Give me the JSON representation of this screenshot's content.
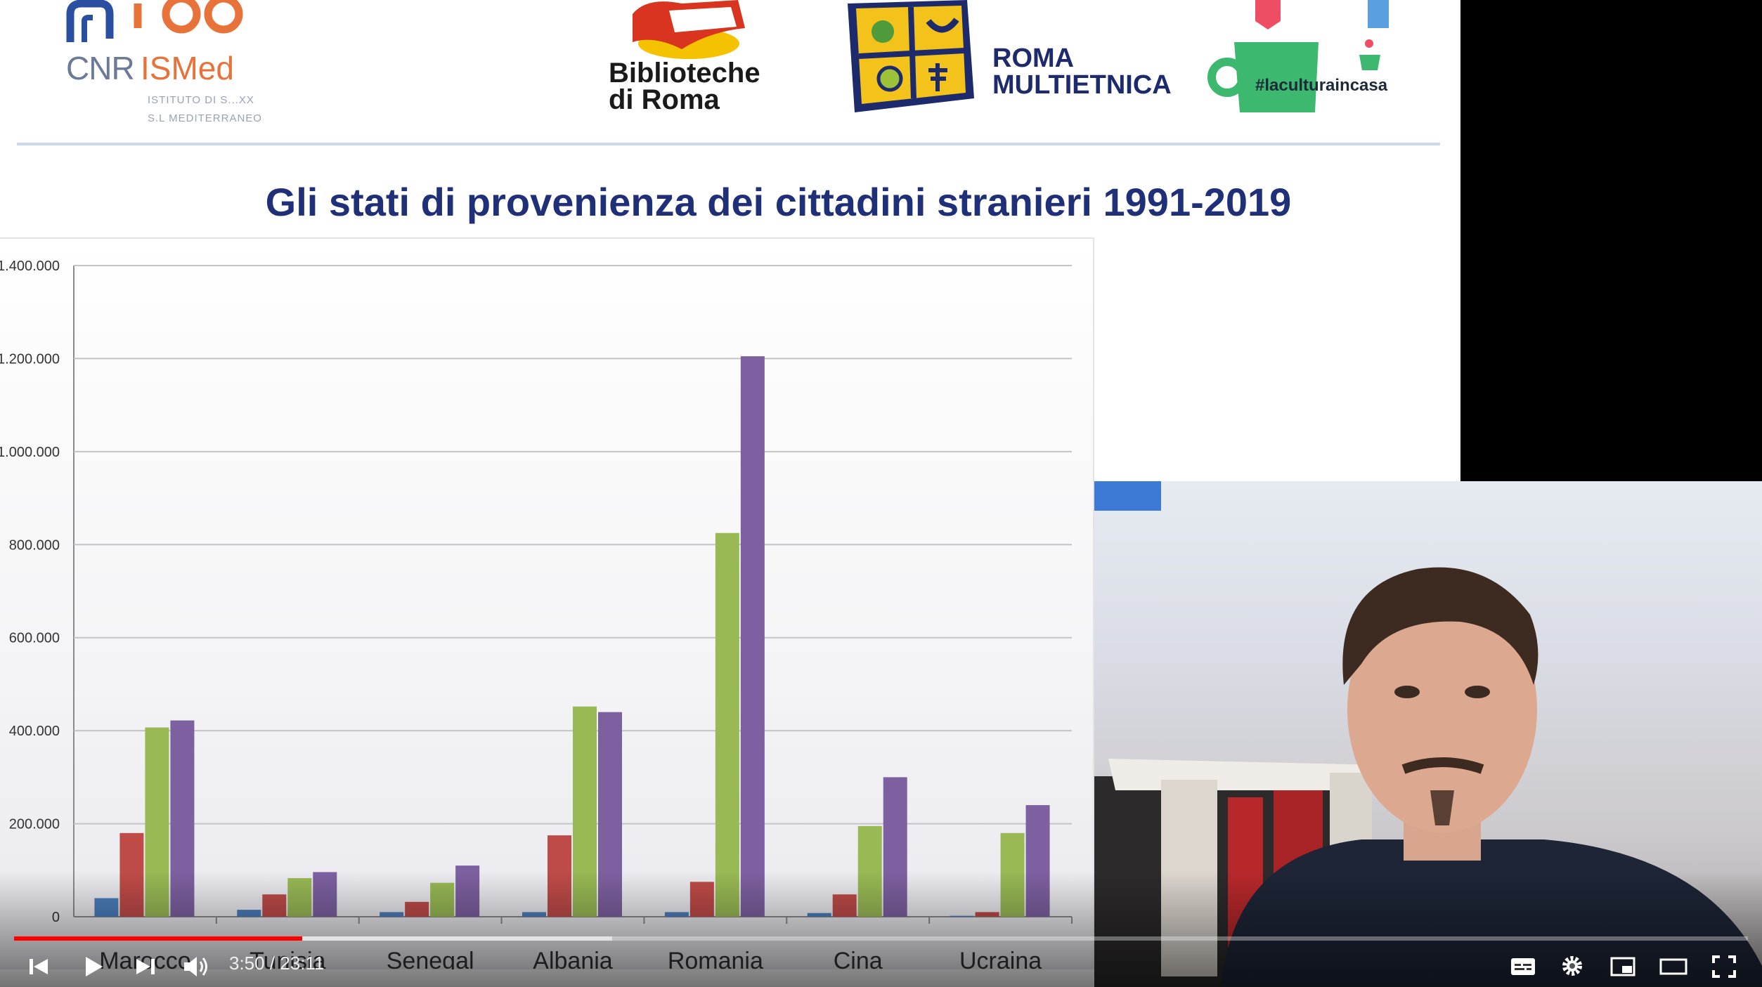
{
  "logos": {
    "cnr": {
      "text": "CNR",
      "ismed": "ISMed",
      "sub_line1": "ISTITUTO DI S...XX",
      "sub_line2": "S.L MEDITERRANEO",
      "anniversary": "100"
    },
    "biblioteche": {
      "line1": "Biblioteche",
      "line2": "di Roma"
    },
    "roma_multietnica": {
      "line1": "ROMA",
      "line2": "MULTIETNICA"
    },
    "cultura": {
      "hashtag": "#laculturaincasa"
    }
  },
  "slide": {
    "title": "Gli stati di provenienza dei cittadini stranieri 1991-2019"
  },
  "chart_data": {
    "type": "bar",
    "title": "",
    "xlabel": "",
    "ylabel": "",
    "ylim": [
      0,
      1400000
    ],
    "yticks": [
      0,
      200000,
      400000,
      600000,
      800000,
      1000000,
      1200000,
      1400000
    ],
    "ytick_labels": [
      "0",
      "200.000",
      "400.000",
      "600.000",
      "800.000",
      "1.000.000",
      "1.200.000",
      "1.400.000"
    ],
    "categories": [
      "Marocco",
      "Tunisia",
      "Senegal",
      "Albania",
      "Romania",
      "Cina",
      "Ucraina"
    ],
    "grid": true,
    "legend": "none",
    "series": [
      {
        "color": "#4a7ebb",
        "values": [
          40000,
          15000,
          10000,
          10000,
          10000,
          8000,
          2000
        ]
      },
      {
        "color": "#be4b48",
        "values": [
          180000,
          48000,
          32000,
          175000,
          75000,
          48000,
          10000
        ]
      },
      {
        "color": "#98b954",
        "values": [
          407000,
          83000,
          73000,
          452000,
          825000,
          195000,
          180000
        ]
      },
      {
        "color": "#7d60a0",
        "values": [
          422000,
          96000,
          110000,
          440000,
          1205000,
          300000,
          240000
        ]
      }
    ]
  },
  "player": {
    "time": "3:50 / 23:11",
    "progress": 0.166,
    "buffered": 0.345,
    "icons": {
      "prev": "previous-icon",
      "play": "play-icon",
      "next": "next-icon",
      "volume": "volume-icon",
      "subtitles": "subtitles-icon",
      "settings": "gear-icon",
      "miniplayer": "miniplayer-icon",
      "theater": "theater-icon",
      "fullscreen": "fullscreen-icon"
    },
    "colors": {
      "played": "#ff0000",
      "icons": "#ffffff"
    }
  }
}
